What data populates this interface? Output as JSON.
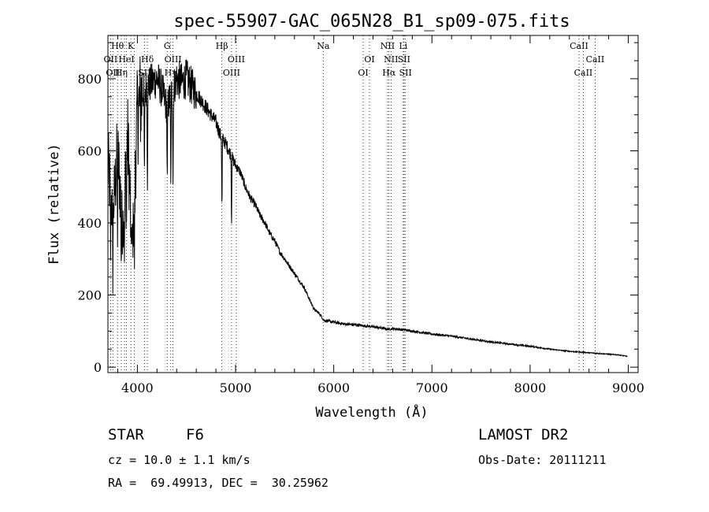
{
  "chart_data": {
    "type": "line",
    "title": "spec-55907-GAC_065N28_B1_sp09-075.fits",
    "xlabel": "Wavelength (Å)",
    "ylabel": "Flux (relative)",
    "xlim": [
      3700,
      9100
    ],
    "ylim": [
      -15,
      920
    ],
    "xticks": [
      4000,
      5000,
      6000,
      7000,
      8000,
      9000
    ],
    "yticks": [
      0,
      200,
      400,
      600,
      800
    ],
    "xtick_labels": [
      "4000",
      "5000",
      "6000",
      "7000",
      "8000",
      "9000"
    ],
    "ytick_labels": [
      "0",
      "200",
      "400",
      "600",
      "800"
    ],
    "series": [
      {
        "name": "spectrum",
        "x": [
          3700,
          3750,
          3800,
          3850,
          3900,
          3950,
          4000,
          4050,
          4100,
          4150,
          4200,
          4250,
          4300,
          4350,
          4400,
          4450,
          4500,
          4550,
          4600,
          4650,
          4700,
          4750,
          4800,
          4850,
          4900,
          4950,
          5000,
          5050,
          5100,
          5150,
          5200,
          5250,
          5300,
          5350,
          5400,
          5450,
          5500,
          5550,
          5600,
          5650,
          5700,
          5750,
          5800,
          5850,
          5900,
          6000,
          6100,
          6200,
          6300,
          6400,
          6500,
          6560,
          6600,
          6700,
          6800,
          6900,
          7000,
          7200,
          7400,
          7600,
          7800,
          8000,
          8200,
          8400,
          8500,
          8600,
          8700,
          8800,
          8900,
          8990
        ],
        "y": [
          560,
          420,
          600,
          380,
          640,
          330,
          700,
          760,
          780,
          790,
          800,
          770,
          720,
          760,
          800,
          790,
          800,
          780,
          760,
          740,
          720,
          700,
          680,
          640,
          620,
          590,
          560,
          540,
          500,
          470,
          450,
          420,
          400,
          370,
          350,
          320,
          300,
          280,
          260,
          240,
          220,
          190,
          160,
          150,
          130,
          125,
          120,
          118,
          115,
          112,
          108,
          105,
          107,
          104,
          100,
          96,
          92,
          86,
          78,
          70,
          64,
          58,
          50,
          44,
          42,
          40,
          38,
          36,
          34,
          30
        ]
      }
    ],
    "spectral_lines": [
      {
        "wl": 3727,
        "label": "OII",
        "row": 1
      },
      {
        "wl": 3750,
        "label": "OII",
        "row": 2
      },
      {
        "wl": 3798,
        "label": "Hθ",
        "row": 0
      },
      {
        "wl": 3836,
        "label": "Hη",
        "row": 2
      },
      {
        "wl": 3869,
        "label": "",
        "row": 0
      },
      {
        "wl": 3889,
        "label": "HeI",
        "row": 1
      },
      {
        "wl": 3934,
        "label": "K",
        "row": 0
      },
      {
        "wl": 3970,
        "label": "",
        "row": 0
      },
      {
        "wl": 4072,
        "label": "SII",
        "row": 2
      },
      {
        "wl": 4102,
        "label": "Hδ",
        "row": 1
      },
      {
        "wl": 4304,
        "label": "G",
        "row": 0
      },
      {
        "wl": 4340,
        "label": "Hγ",
        "row": 2
      },
      {
        "wl": 4363,
        "label": "OIII",
        "row": 1
      },
      {
        "wl": 4861,
        "label": "Hβ",
        "row": 0
      },
      {
        "wl": 4959,
        "label": "OIII",
        "row": 2
      },
      {
        "wl": 5007,
        "label": "OIII",
        "row": 1
      },
      {
        "wl": 5893,
        "label": "Na",
        "row": 0
      },
      {
        "wl": 6300,
        "label": "OI",
        "row": 2
      },
      {
        "wl": 6364,
        "label": "OI",
        "row": 1
      },
      {
        "wl": 6548,
        "label": "NII",
        "row": 0
      },
      {
        "wl": 6563,
        "label": "Hα",
        "row": 2
      },
      {
        "wl": 6583,
        "label": "NII",
        "row": 1
      },
      {
        "wl": 6708,
        "label": "Li",
        "row": 0
      },
      {
        "wl": 6716,
        "label": "SII",
        "row": 1
      },
      {
        "wl": 6731,
        "label": "SII",
        "row": 2
      },
      {
        "wl": 8498,
        "label": "CaII",
        "row": 0
      },
      {
        "wl": 8542,
        "label": "CaII",
        "row": 2
      },
      {
        "wl": 8662,
        "label": "CaII",
        "row": 1
      }
    ]
  },
  "info": {
    "object_type": "STAR",
    "subclass": "F6",
    "survey": "LAMOST DR2",
    "cz": "cz = 10.0 ± 1.1 km/s",
    "obs_date": "Obs-Date: 20111211",
    "coords": "RA =  69.49913, DEC =  30.25962"
  }
}
